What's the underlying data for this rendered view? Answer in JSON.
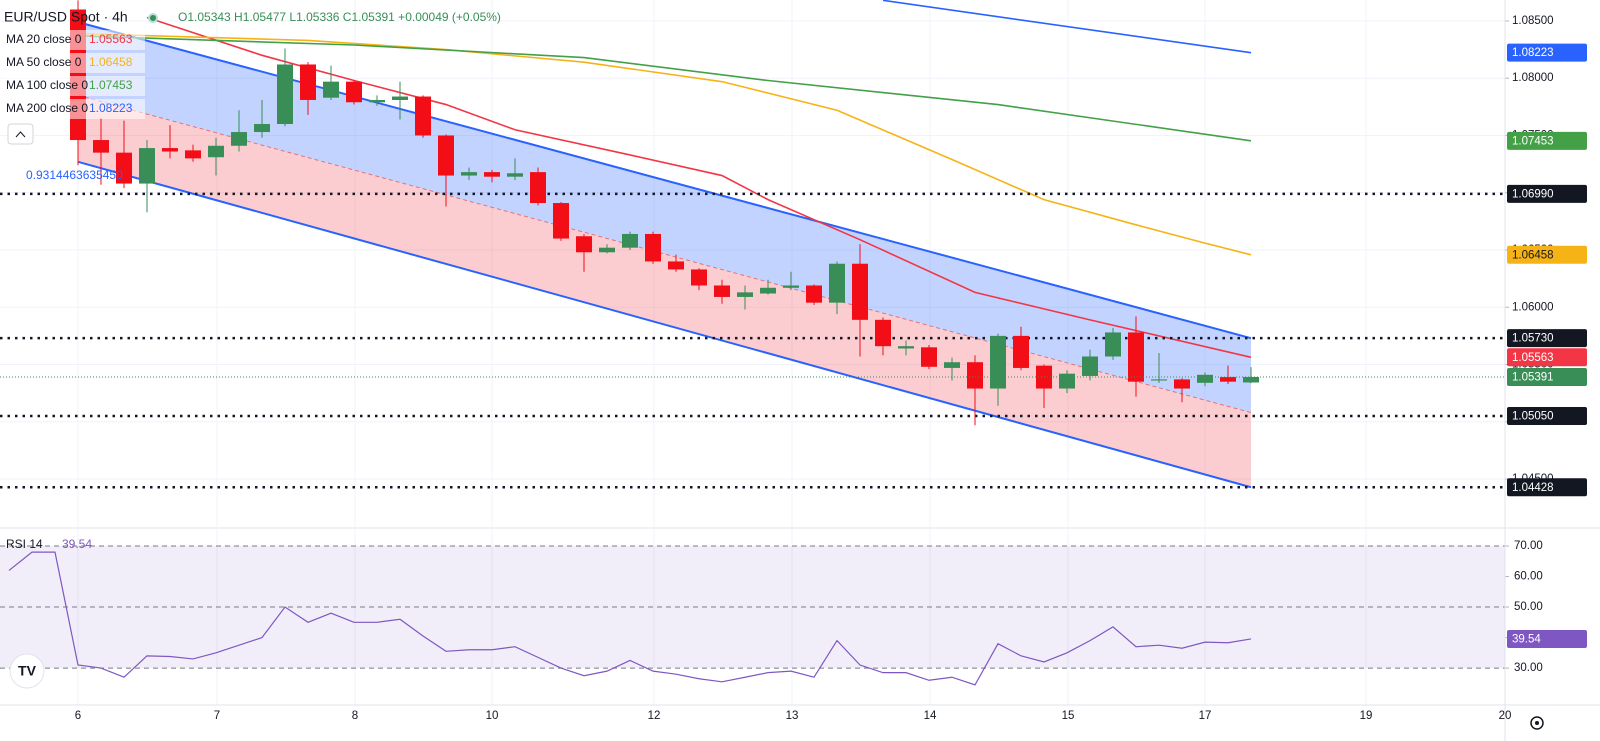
{
  "chart_data": {
    "type": "candlestick",
    "title": "EUR/USD Spot · 4h",
    "ohlc_text": "O1.05343 H1.05477 L1.05336 C1.05391 +0.00049 (+0.05%)",
    "up_color": "#388e56",
    "down_color": "#f20d17",
    "ylim": [
      1.04081,
      1.08683
    ],
    "yticks": [
      {
        "value": 1.045,
        "label": "1.04500"
      },
      {
        "value": 1.05,
        "label": "1.05000"
      },
      {
        "value": 1.055,
        "label": "1.05500"
      },
      {
        "value": 1.06,
        "label": "1.06000"
      },
      {
        "value": 1.065,
        "label": "1.06500"
      },
      {
        "value": 1.07,
        "label": "1.07000"
      },
      {
        "value": 1.075,
        "label": "1.07500"
      },
      {
        "value": 1.08,
        "label": "1.08000"
      },
      {
        "value": 1.085,
        "label": "1.08500"
      }
    ],
    "grid": true,
    "x_labels": [
      "6",
      "7",
      "8",
      "10",
      "12",
      "13",
      "14",
      "15",
      "17",
      "19",
      "20"
    ],
    "ohlc": {
      "open": [
        1.086,
        1.0746,
        1.0735,
        1.0708,
        1.0739,
        1.0737,
        1.0731,
        1.0741,
        1.0753,
        1.076,
        1.0812,
        1.0783,
        1.0797,
        1.0779,
        1.0781,
        1.0784,
        1.075,
        1.0715,
        1.0718,
        1.0714,
        1.0718,
        1.0691,
        1.0662,
        1.0648,
        1.0652,
        1.0664,
        1.064,
        1.0633,
        1.0619,
        1.0609,
        1.0612,
        1.0617,
        1.0619,
        1.0604,
        1.0638,
        1.0589,
        1.0564,
        1.0565,
        1.0547,
        1.0552,
        1.0529,
        1.0575,
        1.0549,
        1.0529,
        1.054,
        1.0557,
        1.0578,
        1.0536,
        1.0537,
        1.0534,
        1.0539,
        1.05343
      ],
      "high": [
        1.0868,
        1.0765,
        1.0763,
        1.0746,
        1.0759,
        1.0742,
        1.0748,
        1.0772,
        1.0781,
        1.0826,
        1.0814,
        1.0811,
        1.0798,
        1.0785,
        1.0797,
        1.0785,
        1.0751,
        1.0722,
        1.072,
        1.073,
        1.0722,
        1.0692,
        1.0664,
        1.0655,
        1.0666,
        1.0666,
        1.0646,
        1.0634,
        1.0624,
        1.0619,
        1.0624,
        1.0631,
        1.062,
        1.064,
        1.0655,
        1.0591,
        1.0571,
        1.0567,
        1.0556,
        1.0558,
        1.0577,
        1.0583,
        1.055,
        1.0545,
        1.0563,
        1.0582,
        1.0592,
        1.056,
        1.0538,
        1.0543,
        1.0549,
        1.05477
      ],
      "low": [
        1.0724,
        1.0707,
        1.0704,
        1.0683,
        1.073,
        1.0727,
        1.0715,
        1.0736,
        1.0748,
        1.0758,
        1.0768,
        1.0781,
        1.0777,
        1.0776,
        1.0764,
        1.0748,
        1.0688,
        1.0711,
        1.0709,
        1.0711,
        1.0689,
        1.0658,
        1.0631,
        1.0647,
        1.065,
        1.0638,
        1.0631,
        1.0615,
        1.0603,
        1.0598,
        1.0611,
        1.0615,
        1.0602,
        1.0594,
        1.0557,
        1.0558,
        1.0558,
        1.0546,
        1.0536,
        1.0497,
        1.0514,
        1.0545,
        1.0512,
        1.0525,
        1.0536,
        1.0554,
        1.0522,
        1.0534,
        1.0517,
        1.0531,
        1.0533,
        1.05336
      ],
      "close": [
        1.0746,
        1.0735,
        1.0708,
        1.0739,
        1.0736,
        1.073,
        1.0741,
        1.0753,
        1.076,
        1.0812,
        1.0781,
        1.0797,
        1.0779,
        1.0781,
        1.0784,
        1.075,
        1.0715,
        1.0718,
        1.0714,
        1.0717,
        1.0691,
        1.066,
        1.0648,
        1.0652,
        1.0664,
        1.064,
        1.0633,
        1.0619,
        1.0609,
        1.0613,
        1.0617,
        1.0619,
        1.0604,
        1.0638,
        1.0589,
        1.0566,
        1.0566,
        1.0548,
        1.0552,
        1.0529,
        1.0575,
        1.0547,
        1.0529,
        1.0542,
        1.0557,
        1.0578,
        1.0535,
        1.0537,
        1.0529,
        1.0541,
        1.0535,
        1.05391
      ]
    },
    "series": [
      {
        "name": "MA 20 close 0",
        "color": "#f23645",
        "x": [
          3,
          8,
          12,
          16,
          19,
          24,
          28,
          30,
          34,
          39,
          44,
          51
        ],
        "values": [
          1.0853,
          1.082,
          1.0798,
          1.0777,
          1.0755,
          1.0733,
          1.0715,
          1.0694,
          1.0659,
          1.0613,
          1.0589,
          1.05563
        ]
      },
      {
        "name": "MA 50 close 0",
        "color": "#f5b316",
        "x": [
          0,
          10,
          16,
          22,
          28,
          33,
          38,
          42,
          46,
          49,
          51
        ],
        "values": [
          1.0839,
          1.0833,
          1.0825,
          1.0814,
          1.0797,
          1.0772,
          1.0729,
          1.0694,
          1.0672,
          1.0656,
          1.06458
        ]
      },
      {
        "name": "MA 100 close 0",
        "color": "#43a047",
        "x": [
          0,
          12,
          22,
          30,
          40,
          51
        ],
        "values": [
          1.0837,
          1.0829,
          1.0818,
          1.0798,
          1.0777,
          1.07453
        ]
      },
      {
        "name": "MA 200 close 0",
        "color": "#2962ff",
        "x": [
          35,
          51
        ],
        "values": [
          1.0868,
          1.08223
        ]
      }
    ],
    "channel": {
      "x": [
        0,
        51
      ],
      "upper": [
        1.0849,
        1.0573
      ],
      "middle": [
        1.0785,
        1.0508
      ],
      "lower": [
        1.0727,
        1.04428
      ],
      "color": "#2962ff",
      "label": "0.9314463635450"
    },
    "levels": [
      {
        "value": 1.0699,
        "label": "1.06990"
      },
      {
        "value": 1.0573,
        "label": "1.05730"
      },
      {
        "value": 1.0505,
        "label": "1.05050"
      },
      {
        "value": 1.04428,
        "label": "1.04428"
      }
    ],
    "rsi": {
      "name": "RSI 14",
      "color": "#7e57c2",
      "x": [
        -3,
        -2,
        -1,
        0,
        1,
        2,
        3,
        4,
        5,
        6,
        7,
        8,
        9,
        10,
        11,
        12,
        13,
        14,
        15,
        16,
        17,
        18,
        19,
        20,
        21,
        22,
        23,
        24,
        25,
        26,
        27,
        28,
        29,
        30,
        31,
        32,
        33,
        34,
        35,
        36,
        37,
        38,
        39,
        40,
        41,
        42,
        43,
        44,
        45,
        46,
        47,
        48,
        49,
        50,
        51
      ],
      "values": [
        62,
        68,
        68,
        31,
        30,
        27,
        34,
        33.8,
        33,
        35,
        37.5,
        40,
        50,
        45,
        48,
        45,
        45,
        46,
        40.5,
        35.5,
        36,
        36,
        37,
        33.5,
        30,
        27.5,
        29,
        32.5,
        29,
        28,
        26.5,
        25.5,
        27,
        28.5,
        29,
        27,
        39,
        31,
        28.5,
        28.5,
        26,
        27,
        24.5,
        38,
        34,
        32,
        35,
        39,
        43.5,
        37,
        37.5,
        36.5,
        38.5,
        38.3,
        39.54
      ],
      "ylim": [
        17.9,
        75.9
      ],
      "yticks": [
        {
          "value": 30,
          "label": "30.00"
        },
        {
          "value": 40,
          "label": "40.00"
        },
        {
          "value": 50,
          "label": "50.00"
        },
        {
          "value": 60,
          "label": "60.00"
        },
        {
          "value": 70,
          "label": "70.00"
        }
      ],
      "levels": [
        70,
        50,
        30
      ]
    }
  }
}
